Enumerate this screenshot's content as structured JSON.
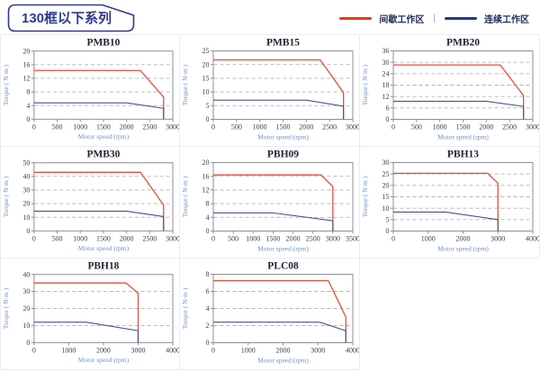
{
  "page": {
    "title": "130框以下系列",
    "legend": [
      {
        "id": "intermittent",
        "label": "间歇工作区",
        "color": "#e23c17"
      },
      {
        "id": "continuous",
        "label": "连续工作区",
        "color": "#1e3c8c"
      }
    ],
    "legend_separator": "|"
  },
  "chart_data": [
    {
      "type": "line",
      "title": "PMB10",
      "xlabel": "Motor speed (rpm)",
      "ylabel": "Torque ( N·m )",
      "xlim": [
        0,
        3000
      ],
      "xticks": [
        0,
        500,
        1000,
        1500,
        2000,
        2500,
        3000
      ],
      "ylim": [
        0,
        20
      ],
      "yticks": [
        0,
        4,
        8,
        12,
        16,
        20
      ],
      "grid": "horizontal-dashed",
      "legend_position": "none",
      "series": [
        {
          "id": "intermittent",
          "name": "间歇工作区",
          "color": "#e35138",
          "points": [
            [
              0,
              14.3
            ],
            [
              2300,
              14.3
            ],
            [
              2800,
              6.5
            ],
            [
              2800,
              0
            ]
          ]
        },
        {
          "id": "continuous",
          "name": "连续工作区",
          "color": "#415689",
          "points": [
            [
              0,
              4.8
            ],
            [
              2000,
              4.8
            ],
            [
              2800,
              3.2
            ],
            [
              2800,
              0
            ]
          ]
        }
      ]
    },
    {
      "type": "line",
      "title": "PMB15",
      "xlabel": "Motor speed (rpm)",
      "ylabel": "Torque ( N·m )",
      "xlim": [
        0,
        3000
      ],
      "xticks": [
        0,
        500,
        1000,
        1500,
        2000,
        2500,
        3000
      ],
      "ylim": [
        0,
        25
      ],
      "yticks": [
        0,
        5,
        10,
        15,
        20,
        25
      ],
      "grid": "horizontal-dashed",
      "legend_position": "none",
      "series": [
        {
          "id": "intermittent",
          "name": "间歇工作区",
          "color": "#e35138",
          "points": [
            [
              0,
              21.7
            ],
            [
              2300,
              21.7
            ],
            [
              2800,
              9.8
            ],
            [
              2800,
              0
            ]
          ]
        },
        {
          "id": "continuous",
          "name": "连续工作区",
          "color": "#415689",
          "points": [
            [
              0,
              7
            ],
            [
              2000,
              7
            ],
            [
              2800,
              4.8
            ],
            [
              2800,
              0
            ]
          ]
        }
      ]
    },
    {
      "type": "line",
      "title": "PMB20",
      "xlabel": "Motor speed (rpm)",
      "ylabel": "Torque ( N·m )",
      "xlim": [
        0,
        3000
      ],
      "xticks": [
        0,
        500,
        1000,
        1500,
        2000,
        2500,
        3000
      ],
      "ylim": [
        0,
        36
      ],
      "yticks": [
        0,
        6,
        12,
        18,
        24,
        30,
        36
      ],
      "grid": "horizontal-dashed",
      "legend_position": "none",
      "series": [
        {
          "id": "intermittent",
          "name": "间歇工作区",
          "color": "#e35138",
          "points": [
            [
              0,
              28.6
            ],
            [
              2300,
              28.6
            ],
            [
              2800,
              12.5
            ],
            [
              2800,
              0
            ]
          ]
        },
        {
          "id": "continuous",
          "name": "连续工作区",
          "color": "#415689",
          "points": [
            [
              0,
              9.5
            ],
            [
              2000,
              9.5
            ],
            [
              2800,
              6.8
            ],
            [
              2800,
              0
            ]
          ]
        }
      ]
    },
    {
      "type": "line",
      "title": "PMB30",
      "xlabel": "Motor speed (rpm)",
      "ylabel": "Torque ( N·m )",
      "xlim": [
        0,
        3000
      ],
      "xticks": [
        0,
        500,
        1000,
        1500,
        2000,
        2500,
        3000
      ],
      "ylim": [
        0,
        50
      ],
      "yticks": [
        0,
        10,
        20,
        30,
        40,
        50
      ],
      "grid": "horizontal-dashed",
      "legend_position": "none",
      "series": [
        {
          "id": "intermittent",
          "name": "间歇工作区",
          "color": "#e35138",
          "points": [
            [
              0,
              43
            ],
            [
              2300,
              43
            ],
            [
              2800,
              19
            ],
            [
              2800,
              0
            ]
          ]
        },
        {
          "id": "continuous",
          "name": "连续工作区",
          "color": "#415689",
          "points": [
            [
              0,
              14.5
            ],
            [
              2000,
              14.5
            ],
            [
              2800,
              10.5
            ],
            [
              2800,
              0
            ]
          ]
        }
      ]
    },
    {
      "type": "line",
      "title": "PBH09",
      "xlabel": "Motor speed (rpm)",
      "ylabel": "Torque ( N·m )",
      "xlim": [
        0,
        3500
      ],
      "xticks": [
        0,
        500,
        1000,
        1500,
        2000,
        2500,
        3000,
        3500
      ],
      "ylim": [
        0,
        20
      ],
      "yticks": [
        0,
        4,
        8,
        12,
        16,
        20
      ],
      "grid": "horizontal-dashed",
      "legend_position": "none",
      "series": [
        {
          "id": "intermittent",
          "name": "间歇工作区",
          "color": "#e35138",
          "points": [
            [
              0,
              16.4
            ],
            [
              2700,
              16.4
            ],
            [
              3000,
              13
            ],
            [
              3000,
              0
            ]
          ]
        },
        {
          "id": "continuous",
          "name": "连续工作区",
          "color": "#415689",
          "points": [
            [
              0,
              5.3
            ],
            [
              1500,
              5.3
            ],
            [
              3000,
              3
            ],
            [
              3000,
              0
            ]
          ]
        }
      ]
    },
    {
      "type": "line",
      "title": "PBH13",
      "xlabel": "Motor speed (rpm)",
      "ylabel": "Torque ( N·m )",
      "xlim": [
        0,
        4000
      ],
      "xticks": [
        0,
        1000,
        2000,
        3000,
        4000
      ],
      "ylim": [
        0,
        30
      ],
      "yticks": [
        0,
        5,
        10,
        15,
        20,
        25,
        30
      ],
      "grid": "horizontal-dashed",
      "legend_position": "none",
      "series": [
        {
          "id": "intermittent",
          "name": "间歇工作区",
          "color": "#e35138",
          "points": [
            [
              0,
              25.3
            ],
            [
              2700,
              25.3
            ],
            [
              3000,
              21
            ],
            [
              3000,
              0
            ]
          ]
        },
        {
          "id": "continuous",
          "name": "连续工作区",
          "color": "#415689",
          "points": [
            [
              0,
              8.3
            ],
            [
              1500,
              8.3
            ],
            [
              3000,
              5
            ],
            [
              3000,
              0
            ]
          ]
        }
      ]
    },
    {
      "type": "line",
      "title": "PBH18",
      "xlabel": "Motor speed (rpm)",
      "ylabel": "Torque ( N·m )",
      "xlim": [
        0,
        4000
      ],
      "xticks": [
        0,
        1000,
        2000,
        3000,
        4000
      ],
      "ylim": [
        0,
        40
      ],
      "yticks": [
        0,
        10,
        20,
        30,
        40
      ],
      "grid": "horizontal-dashed",
      "legend_position": "none",
      "series": [
        {
          "id": "intermittent",
          "name": "间歇工作区",
          "color": "#e35138",
          "points": [
            [
              0,
              35
            ],
            [
              2650,
              35
            ],
            [
              3000,
              29
            ],
            [
              3000,
              0
            ]
          ]
        },
        {
          "id": "continuous",
          "name": "连续工作区",
          "color": "#415689",
          "points": [
            [
              0,
              12
            ],
            [
              1500,
              12
            ],
            [
              3000,
              7
            ],
            [
              3000,
              0
            ]
          ]
        }
      ]
    },
    {
      "type": "line",
      "title": "PLC08",
      "xlabel": "Motor speed (rpm)",
      "ylabel": "Torque ( N·m )",
      "xlim": [
        0,
        4000
      ],
      "xticks": [
        0,
        1000,
        2000,
        3000,
        4000
      ],
      "ylim": [
        0,
        8
      ],
      "yticks": [
        0,
        2,
        4,
        6,
        8
      ],
      "grid": "horizontal-dashed",
      "legend_position": "none",
      "series": [
        {
          "id": "intermittent",
          "name": "间歇工作区",
          "color": "#e35138",
          "points": [
            [
              0,
              7.25
            ],
            [
              3300,
              7.25
            ],
            [
              3800,
              3
            ],
            [
              3800,
              0
            ]
          ]
        },
        {
          "id": "continuous",
          "name": "连续工作区",
          "color": "#415689",
          "points": [
            [
              0,
              2.4
            ],
            [
              3050,
              2.4
            ],
            [
              3800,
              1.4
            ],
            [
              3800,
              0
            ]
          ]
        }
      ]
    }
  ]
}
